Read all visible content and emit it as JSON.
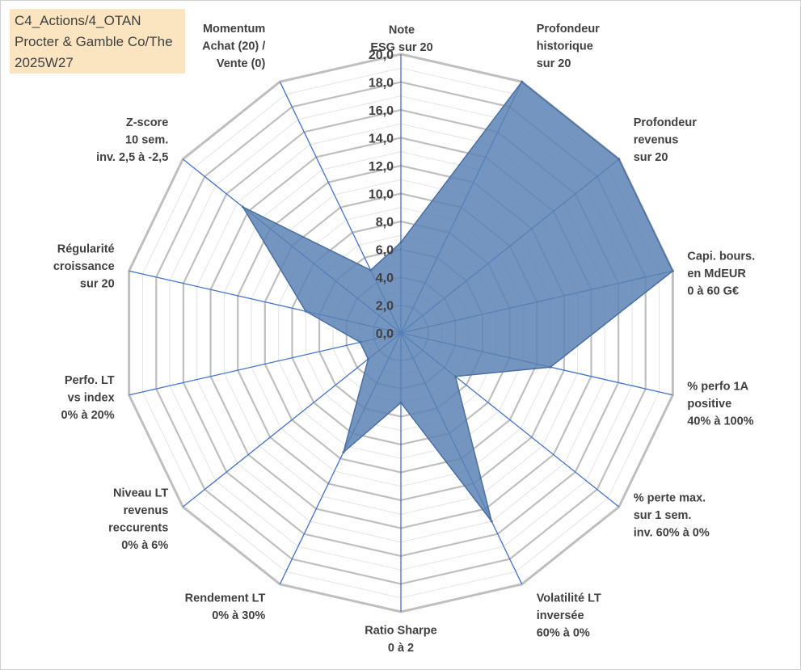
{
  "title_box": {
    "lines": [
      "C4_Actions/4_OTAN",
      "Procter & Gamble Co/The",
      "2025W27"
    ]
  },
  "colors": {
    "grid": "#bfbfbf",
    "spoke": "#4472c4",
    "series_fill": "#5b82b4",
    "series_stroke": "#4a6fa0",
    "title_bg": "#fbe5c0"
  },
  "chart_data": {
    "type": "radar",
    "rmin": 0,
    "rmax": 20,
    "tick_step": 2,
    "tick_labels": [
      "0,0",
      "2,0",
      "4,0",
      "6,0",
      "8,0",
      "10,0",
      "12,0",
      "14,0",
      "16,0",
      "18,0",
      "20,0"
    ],
    "grid": true,
    "legend": "none",
    "axes": [
      {
        "label": [
          "Note",
          "ESG sur 20"
        ],
        "value": 6.5
      },
      {
        "label": [
          "Profondeur",
          "historique",
          "sur 20"
        ],
        "value": 20
      },
      {
        "label": [
          "Profondeur",
          "revenus",
          "sur 20"
        ],
        "value": 20
      },
      {
        "label": [
          "Capi. bours.",
          "en MdEUR",
          "0 à 60 G€"
        ],
        "value": 20
      },
      {
        "label": [
          "% perfo 1A",
          "positive",
          "40% à 100%"
        ],
        "value": 11
      },
      {
        "label": [
          "% perte max.",
          "sur 1 sem.",
          "inv. 60% à 0%"
        ],
        "value": 5
      },
      {
        "label": [
          "Volatilité LT",
          "inversée",
          "60% à 0%"
        ],
        "value": 15
      },
      {
        "label": [
          "Ratio Sharpe",
          "0 à 2"
        ],
        "value": 5
      },
      {
        "label": [
          "Rendement LT",
          "0% à 30%"
        ],
        "value": 9.5
      },
      {
        "label": [
          "Niveau LT",
          "revenus",
          "reccurents",
          "0% à 6%"
        ],
        "value": 3
      },
      {
        "label": [
          "Perfo. LT",
          "vs index",
          "0% à 20%"
        ],
        "value": 3
      },
      {
        "label": [
          "Régularité",
          "croissance",
          "sur 20"
        ],
        "value": 7
      },
      {
        "label": [
          "Z-score",
          "10 sem.",
          "inv. 2,5 à -2,5"
        ],
        "value": 14.5
      },
      {
        "label": [
          "Momentum",
          "Achat (20) /",
          "Vente (0)"
        ],
        "value": 5
      }
    ]
  }
}
